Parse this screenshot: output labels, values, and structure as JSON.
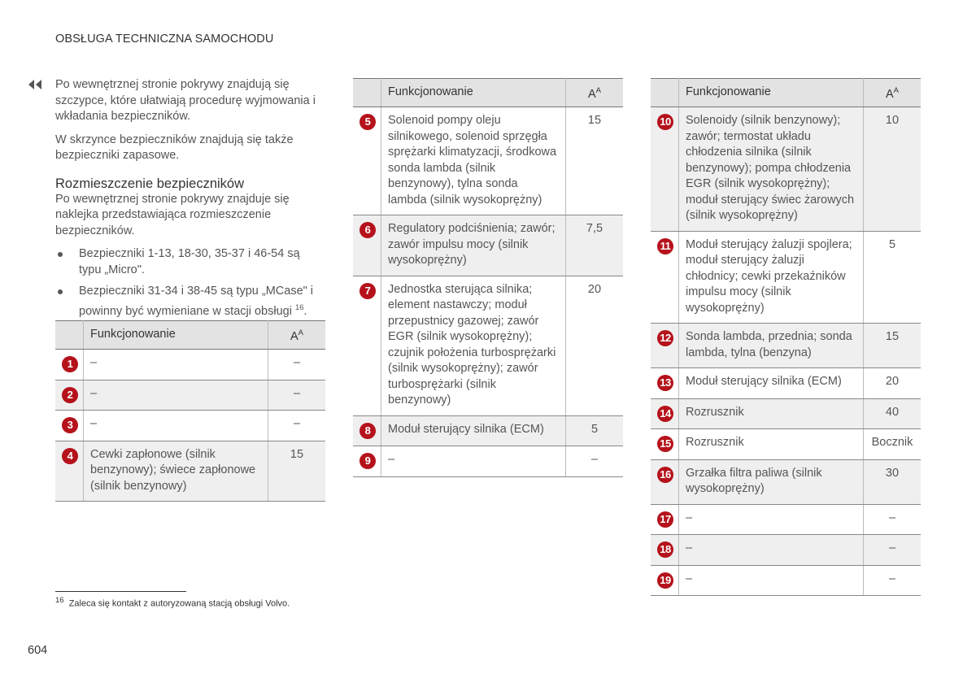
{
  "header": {
    "title": "OBSŁUGA TECHNICZNA SAMOCHODU"
  },
  "intro": [
    "Po wewnętrznej stronie pokrywy znajdują się szczypce, które ułatwiają procedurę wyjmowania i wkładania bezpieczników.",
    "W skrzynce bezpieczników znajdują się także bezpieczniki zapasowe."
  ],
  "section": {
    "heading": "Rozmieszczenie bezpieczników",
    "text": "Po wewnętrznej stronie pokrywy znajduje się naklejka przedstawiająca rozmieszczenie bezpieczników.",
    "bullets": [
      {
        "text": "Bezpieczniki 1-13, 18-30, 35-37 i 46-54 są typu „Micro\"."
      },
      {
        "text": "Bezpieczniki 31-34 i 38-45 są typu „MCase\" i powinny być wymieniane w stacji obsługi",
        "sup": "16",
        "after": "."
      }
    ]
  },
  "tables": [
    {
      "header": {
        "function": "Funkcjonowanie",
        "amp": "A",
        "amp_sup": "A"
      },
      "rows": [
        {
          "number": "1",
          "function": "–",
          "amp": "–"
        },
        {
          "number": "2",
          "function": "–",
          "amp": "–"
        },
        {
          "number": "3",
          "function": "–",
          "amp": "–"
        },
        {
          "number": "4",
          "function": "Cewki zapłonowe (silnik benzynowy); świece zapłonowe (silnik benzynowy)",
          "amp": "15"
        }
      ]
    },
    {
      "header": {
        "function": "Funkcjonowanie",
        "amp": "A",
        "amp_sup": "A"
      },
      "rows": [
        {
          "number": "5",
          "function": "Solenoid pompy oleju silnikowego, solenoid sprzęgła sprężarki klimatyzacji, środkowa sonda lambda (silnik benzynowy), tylna sonda lambda (silnik wysokoprężny)",
          "amp": "15"
        },
        {
          "number": "6",
          "function": "Regulatory podciśnienia; zawór; zawór impulsu mocy (silnik wysokoprężny)",
          "amp": "7,5"
        },
        {
          "number": "7",
          "function": "Jednostka sterująca silnika; element nastawczy; moduł przepustnicy gazowej; zawór EGR (silnik wysokoprężny); czujnik położenia turbosprężarki (silnik wysokoprężny); zawór turbosprężarki (silnik benzynowy)",
          "amp": "20"
        },
        {
          "number": "8",
          "function": "Moduł sterujący silnika (ECM)",
          "amp": "5"
        },
        {
          "number": "9",
          "function": "–",
          "amp": "–"
        }
      ]
    },
    {
      "header": {
        "function": "Funkcjonowanie",
        "amp": "A",
        "amp_sup": "A"
      },
      "rows": [
        {
          "number": "10",
          "function": "Solenoidy (silnik benzynowy); zawór; termostat układu chłodzenia silnika (silnik benzynowy); pompa chłodzenia EGR (silnik wysokoprężny); moduł sterujący świec żarowych (silnik wysokoprężny)",
          "amp": "10"
        },
        {
          "number": "11",
          "function": "Moduł sterujący żaluzji spojlera; moduł sterujący żaluzji chłodnicy; cewki przekaźników impulsu mocy (silnik wysokoprężny)",
          "amp": "5"
        },
        {
          "number": "12",
          "function": "Sonda lambda, przednia; sonda lambda, tylna (benzyna)",
          "amp": "15"
        },
        {
          "number": "13",
          "function": "Moduł sterujący silnika (ECM)",
          "amp": "20"
        },
        {
          "number": "14",
          "function": "Rozrusznik",
          "amp": "40"
        },
        {
          "number": "15",
          "function": "Rozrusznik",
          "amp": "Bocznik"
        },
        {
          "number": "16",
          "function": "Grzałka filtra paliwa (silnik wysokoprężny)",
          "amp": "30"
        },
        {
          "number": "17",
          "function": "–",
          "amp": "–"
        },
        {
          "number": "18",
          "function": "–",
          "amp": "–"
        },
        {
          "number": "19",
          "function": "–",
          "amp": "–"
        }
      ]
    }
  ],
  "footnote": {
    "number": "16",
    "text": "Zaleca się kontakt z autoryzowaną stacją obsługi Volvo."
  },
  "page_number": "604"
}
